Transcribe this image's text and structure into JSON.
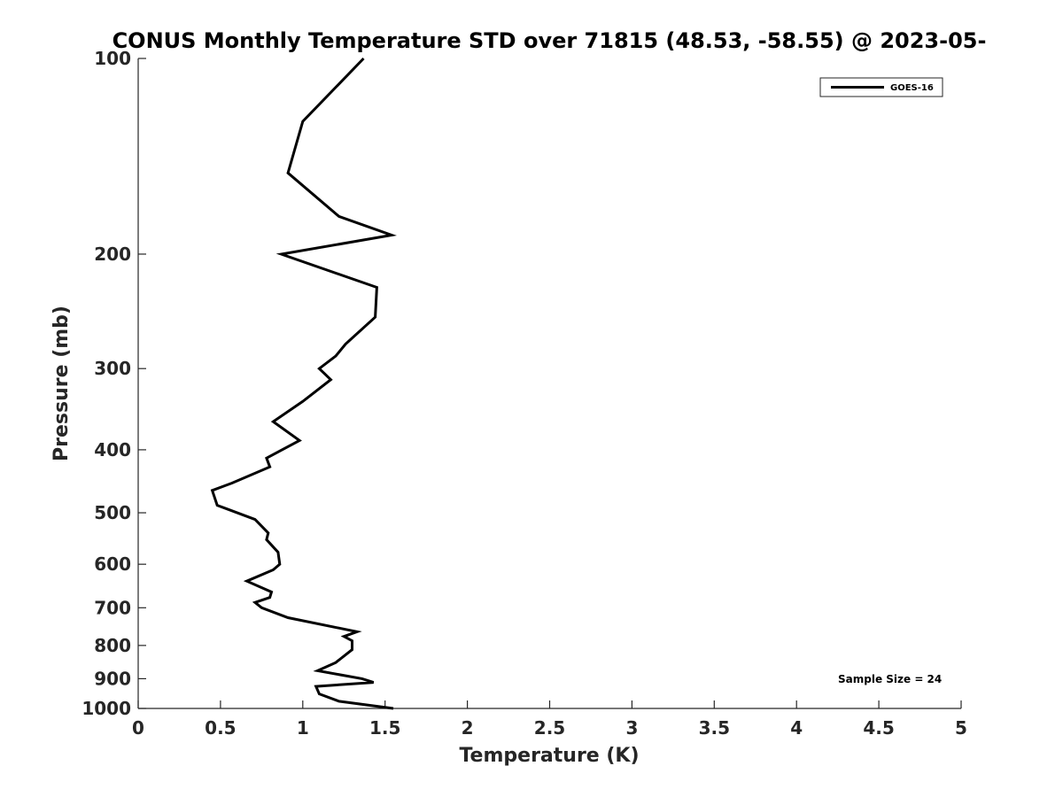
{
  "chart_data": {
    "type": "line",
    "title": "CONUS Monthly Temperature STD over 71815 (48.53, -58.55) @ 2023-05-",
    "xlabel": "Temperature (K)",
    "ylabel": "Pressure (mb)",
    "xlim": [
      0,
      5
    ],
    "ylim": [
      1000,
      100
    ],
    "y_scale": "log",
    "y_inverted": true,
    "x_ticks": [
      0,
      0.5,
      1,
      1.5,
      2,
      2.5,
      3,
      3.5,
      4,
      4.5,
      5
    ],
    "x_tick_labels": [
      "0",
      "0.5",
      "1",
      "1.5",
      "2",
      "2.5",
      "3",
      "3.5",
      "4",
      "4.5",
      "5"
    ],
    "y_ticks": [
      100,
      200,
      300,
      400,
      500,
      600,
      700,
      800,
      900,
      1000
    ],
    "y_tick_labels": [
      "100",
      "200",
      "300",
      "400",
      "500",
      "600",
      "700",
      "800",
      "900",
      "1000"
    ],
    "grid": false,
    "legend_position": "top-right",
    "annotation": "Sample Size = 24",
    "series": [
      {
        "name": "GOES-16",
        "color": "#000000",
        "points": [
          [
            1.37,
            100
          ],
          [
            1.0,
            125
          ],
          [
            0.91,
            150
          ],
          [
            1.22,
            175
          ],
          [
            1.54,
            187
          ],
          [
            0.87,
            200
          ],
          [
            1.45,
            225
          ],
          [
            1.44,
            250
          ],
          [
            1.26,
            275
          ],
          [
            1.2,
            287
          ],
          [
            1.1,
            300
          ],
          [
            1.17,
            312
          ],
          [
            1.0,
            337
          ],
          [
            0.82,
            362
          ],
          [
            0.98,
            387
          ],
          [
            0.78,
            412
          ],
          [
            0.8,
            425
          ],
          [
            0.57,
            450
          ],
          [
            0.45,
            462
          ],
          [
            0.48,
            487
          ],
          [
            0.71,
            512
          ],
          [
            0.79,
            537
          ],
          [
            0.78,
            550
          ],
          [
            0.85,
            575
          ],
          [
            0.86,
            600
          ],
          [
            0.82,
            612
          ],
          [
            0.66,
            637
          ],
          [
            0.81,
            662
          ],
          [
            0.8,
            675
          ],
          [
            0.71,
            687
          ],
          [
            0.75,
            700
          ],
          [
            0.91,
            725
          ],
          [
            1.33,
            762
          ],
          [
            1.25,
            775
          ],
          [
            1.3,
            787
          ],
          [
            1.3,
            812
          ],
          [
            1.2,
            850
          ],
          [
            1.09,
            875
          ],
          [
            1.36,
            900
          ],
          [
            1.43,
            912
          ],
          [
            1.08,
            925
          ],
          [
            1.1,
            950
          ],
          [
            1.22,
            975
          ],
          [
            1.55,
            1000
          ]
        ]
      }
    ]
  }
}
